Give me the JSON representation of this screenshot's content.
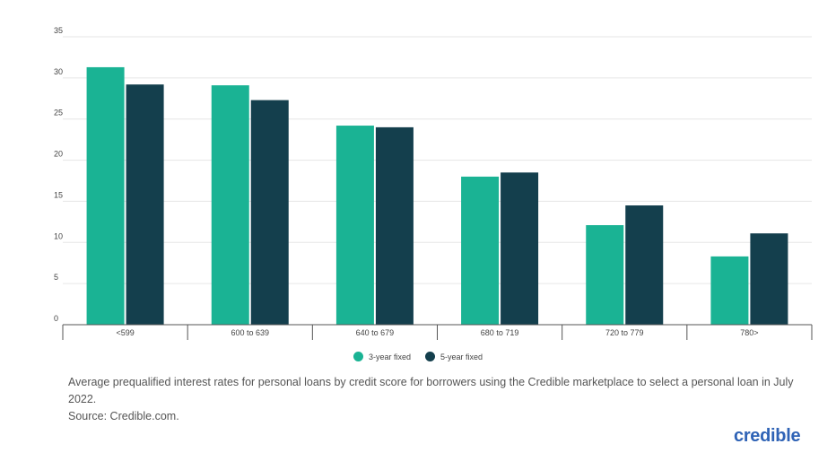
{
  "chart_data": {
    "type": "bar",
    "categories": [
      "<599",
      "600 to 639",
      "640 to 679",
      "680 to 719",
      "720 to 779",
      "780>"
    ],
    "series": [
      {
        "name": "3-year fixed",
        "values": [
          31.3,
          29.1,
          24.2,
          18.0,
          12.1,
          8.3
        ],
        "color": "#1ab394"
      },
      {
        "name": "5-year fixed",
        "values": [
          29.2,
          27.3,
          24.0,
          18.5,
          14.5,
          11.1
        ],
        "color": "#143f4d"
      }
    ],
    "yticks": [
      0,
      5,
      10,
      15,
      20,
      25,
      30,
      35
    ],
    "ylim": [
      0,
      35
    ],
    "grid": true,
    "legend_placement": "bottom-center"
  },
  "caption": {
    "line1": "Average prequalified interest rates for personal loans by credit score for borrowers using the Credible marketplace to select a personal loan in July 2022.",
    "line2": "Source: Credible.com."
  },
  "brand": "credible"
}
